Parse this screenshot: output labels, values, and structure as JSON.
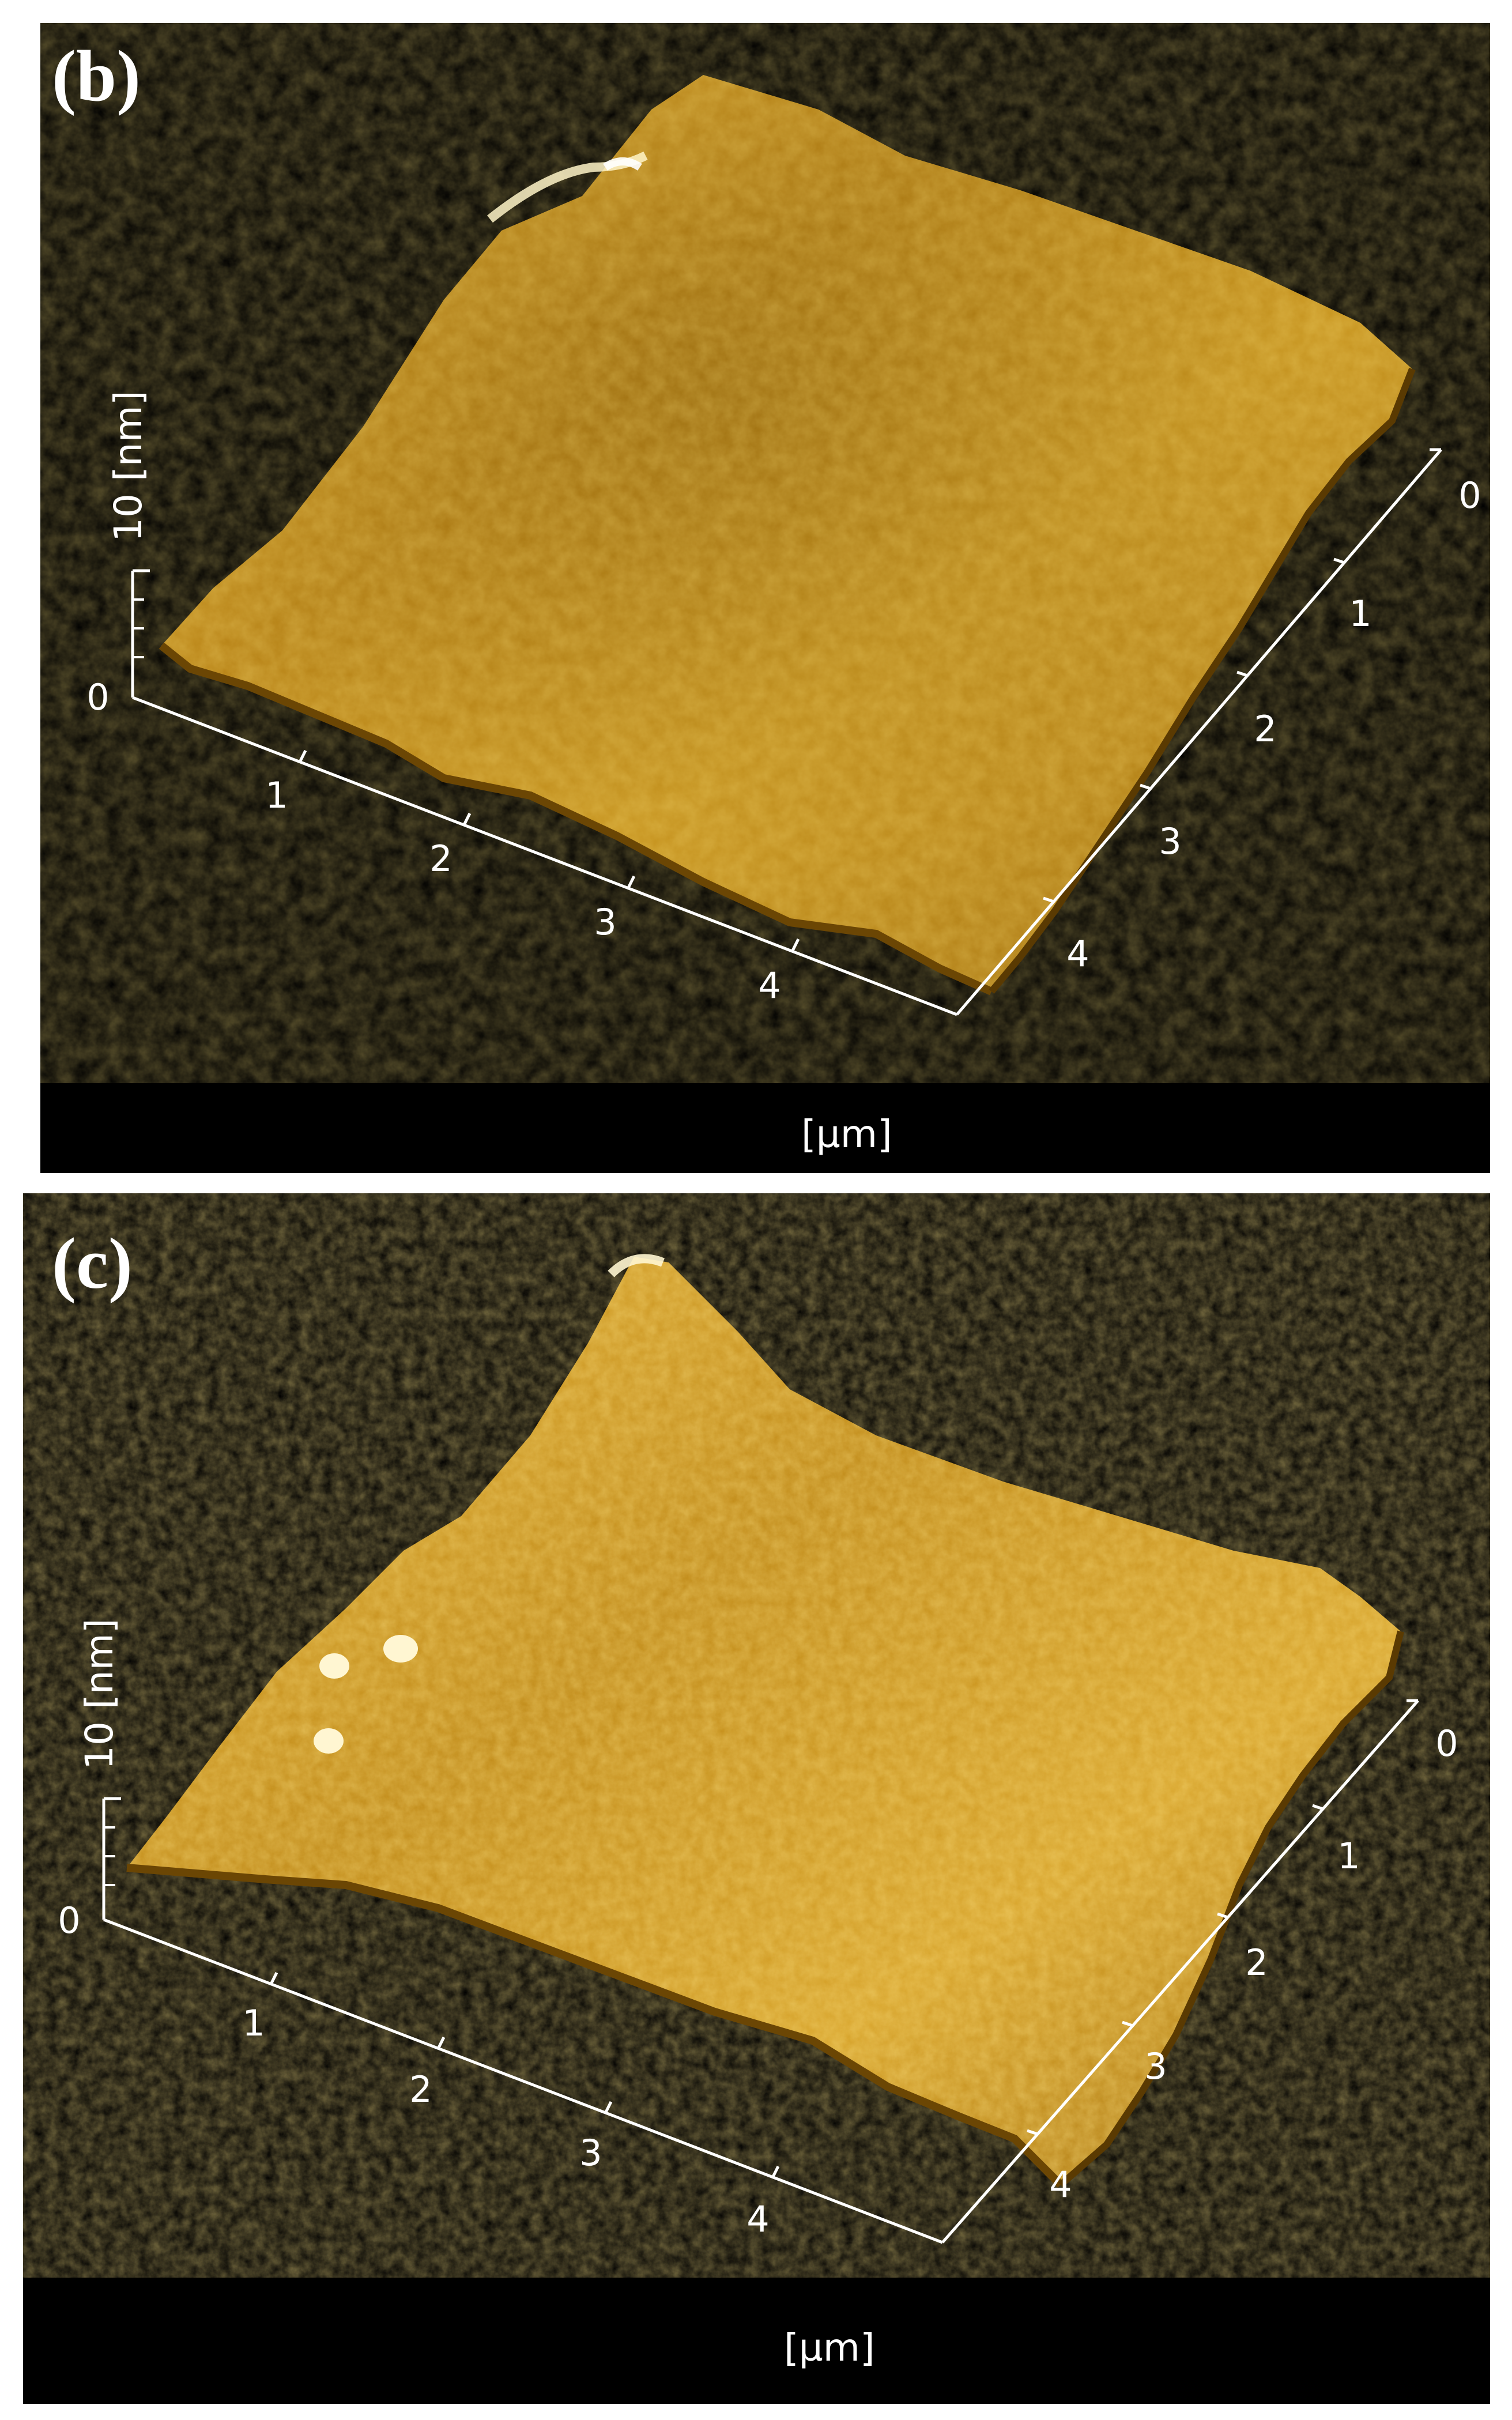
{
  "panels": [
    {
      "label": "(b)",
      "unit_xy": "[µm]",
      "z_label": "10 [nm]",
      "z_zero": "0",
      "x_ticks": [
        "1",
        "2",
        "3",
        "4"
      ],
      "y_ticks": [
        "0",
        "1",
        "2",
        "3",
        "4"
      ],
      "surface_colors": {
        "light": "#F2C24A",
        "mid": "#C98E1A",
        "dark": "#7A5206",
        "highlight": "#FFF4C8"
      }
    },
    {
      "label": "(c)",
      "unit_xy": "[µm]",
      "z_label": "10 [nm]",
      "z_zero": "0",
      "x_ticks": [
        "1",
        "2",
        "3",
        "4"
      ],
      "y_ticks": [
        "0",
        "1",
        "2",
        "3",
        "4"
      ],
      "surface_colors": {
        "light": "#F4C650",
        "mid": "#CC921C",
        "dark": "#7C5408",
        "highlight": "#FFF6D2"
      }
    }
  ]
}
